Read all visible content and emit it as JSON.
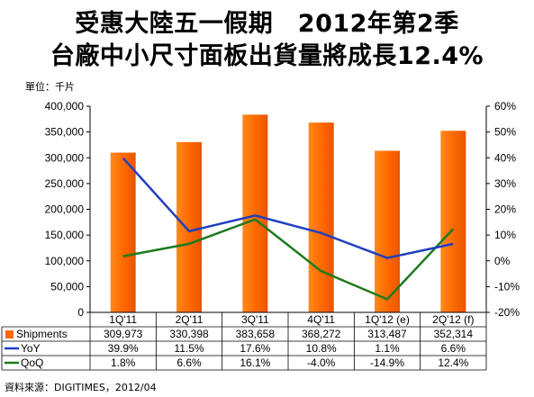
{
  "title_line1": "受惠大陸五一假期　2012年第2季",
  "title_line2": "台廠中小尺寸面板出貨量將成長12.4%",
  "unit_label": "單位：千片",
  "source": "資料來源：DIGITIMES，2012/04",
  "chart_data": {
    "type": "bar",
    "categories": [
      "1Q'11",
      "2Q'11",
      "3Q'11",
      "4Q'11",
      "1Q'12 (e)",
      "2Q'12 (f)"
    ],
    "left_axis": {
      "min": 0,
      "max": 400000,
      "step": 50000,
      "ticks": [
        "0",
        "50,000",
        "100,000",
        "150,000",
        "200,000",
        "250,000",
        "300,000",
        "350,000",
        "400,000"
      ]
    },
    "right_axis": {
      "min": -20,
      "max": 60,
      "step": 10,
      "ticks": [
        "-20%",
        "-10%",
        "0%",
        "10%",
        "20%",
        "30%",
        "40%",
        "50%",
        "60%"
      ]
    },
    "series": [
      {
        "name": "Shipments",
        "type": "bar",
        "axis": "left",
        "color": "#ff6a00",
        "values": [
          309973,
          330398,
          383658,
          368272,
          313487,
          352314
        ],
        "labels": [
          "309,973",
          "330,398",
          "383,658",
          "368,272",
          "313,487",
          "352,314"
        ]
      },
      {
        "name": "YoY",
        "type": "line",
        "axis": "right",
        "color": "#1f3fbf",
        "values": [
          39.9,
          11.5,
          17.6,
          10.8,
          1.1,
          6.6
        ],
        "labels": [
          "39.9%",
          "11.5%",
          "17.6%",
          "10.8%",
          "1.1%",
          "6.6%"
        ]
      },
      {
        "name": "QoQ",
        "type": "line",
        "axis": "right",
        "color": "#1e7a1e",
        "values": [
          1.8,
          6.6,
          16.1,
          -4.0,
          -14.9,
          12.4
        ],
        "labels": [
          "1.8%",
          "6.6%",
          "16.1%",
          "-4.0%",
          "-14.9%",
          "12.4%"
        ]
      }
    ],
    "grid": false,
    "legend": "table-below"
  }
}
